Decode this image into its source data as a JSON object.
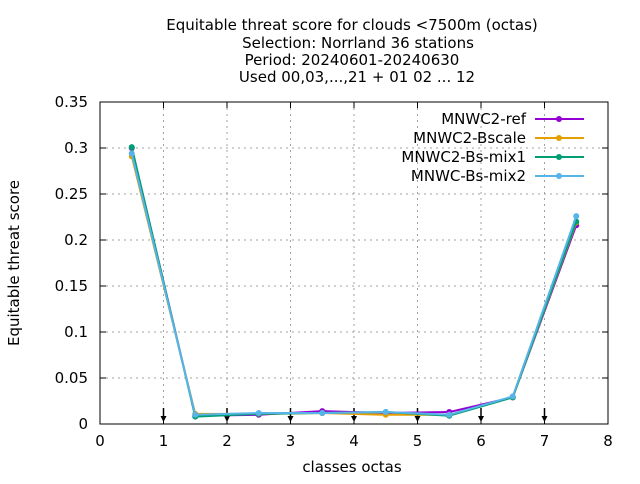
{
  "chart_data": {
    "type": "line",
    "title_lines": [
      "Equitable threat score  for clouds <7500m (octas)",
      "Selection: Norrland     36 stations",
      "Period: 20240601-20240630",
      "Used 00,03,...,21 + 01 02 ... 12"
    ],
    "xlabel": "classes octas",
    "ylabel": "Equitable threat score",
    "xlim": [
      0,
      8
    ],
    "ylim": [
      0,
      0.35
    ],
    "x_ticks": [
      "0",
      "1",
      "2",
      "3",
      "4",
      "5",
      "6",
      "7",
      "8"
    ],
    "y_ticks": [
      "0",
      "0.05",
      "0.1",
      "0.15",
      "0.2",
      "0.25",
      "0.3",
      "0.35"
    ],
    "grid": true,
    "legend_position": "top-right",
    "arrow_markers_x": [
      1,
      2,
      3,
      4,
      5,
      6,
      7
    ],
    "x": [
      0.5,
      1.5,
      2.5,
      3.5,
      4.5,
      5.5,
      6.5,
      7.5
    ],
    "series": [
      {
        "name": "MNWC2-ref",
        "color": "#9400d3",
        "values": [
          0.3,
          0.009,
          0.01,
          0.014,
          0.012,
          0.013,
          0.029,
          0.216
        ]
      },
      {
        "name": "MNWC2-Bscale",
        "color": "#e69f00",
        "values": [
          0.291,
          0.011,
          0.011,
          0.012,
          0.01,
          0.01,
          0.029,
          0.219
        ]
      },
      {
        "name": "MNWC2-Bs-mix1",
        "color": "#009e73",
        "values": [
          0.301,
          0.008,
          0.011,
          0.012,
          0.013,
          0.009,
          0.029,
          0.22
        ]
      },
      {
        "name": "MNWC-Bs-mix2",
        "color": "#56b4e9",
        "values": [
          0.294,
          0.01,
          0.012,
          0.012,
          0.013,
          0.01,
          0.03,
          0.226
        ]
      }
    ]
  }
}
